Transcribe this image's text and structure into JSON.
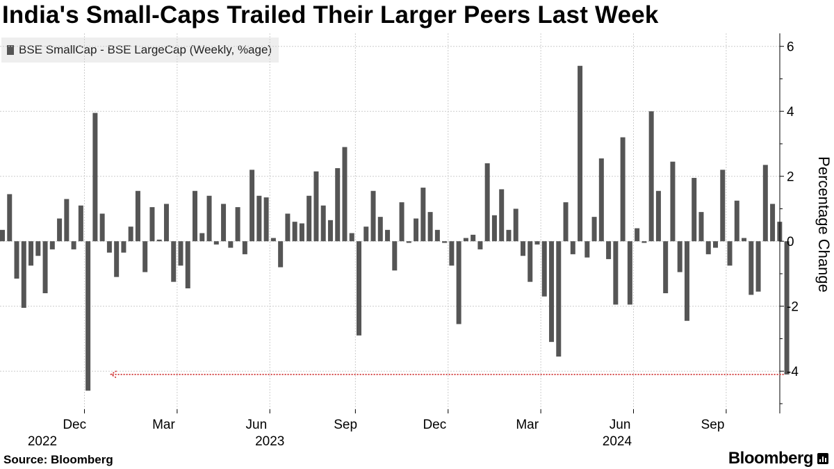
{
  "chart_data": {
    "type": "bar",
    "title": "India's Small-Caps Trailed Their Larger Peers Last Week",
    "legend": "BSE SmallCap - BSE LargeCap (Weekly, %age)",
    "ylabel": "Percentage Change",
    "ylim": [
      -5.3,
      6.4
    ],
    "yticks": [
      6,
      4,
      2,
      0,
      -2,
      -4
    ],
    "ytick_labels": [
      "6",
      "4",
      "2",
      "0",
      "-2",
      "-4"
    ],
    "x_tick_labels": [
      "Dec",
      "Mar",
      "Jun",
      "Sep",
      "Dec",
      "Mar",
      "Jun",
      "Sep"
    ],
    "year_labels": [
      "2022",
      "2023",
      "2024"
    ],
    "values": [
      0.35,
      1.45,
      -1.15,
      -2.05,
      -0.75,
      -0.45,
      -1.6,
      -0.25,
      0.7,
      1.3,
      -0.25,
      1.1,
      -4.6,
      3.95,
      0.85,
      -0.35,
      -1.1,
      -0.35,
      0.45,
      1.55,
      -0.95,
      1.05,
      0.05,
      1.15,
      -1.25,
      -0.75,
      -1.45,
      1.55,
      0.25,
      1.4,
      -0.1,
      1.15,
      -0.2,
      1.05,
      -0.4,
      2.2,
      1.4,
      1.35,
      0.1,
      -0.8,
      0.85,
      0.6,
      0.55,
      1.4,
      2.15,
      1.1,
      0.65,
      2.25,
      2.9,
      0.25,
      -2.9,
      0.45,
      1.55,
      0.75,
      0.35,
      -0.9,
      1.2,
      -0.05,
      0.7,
      1.65,
      0.9,
      0.35,
      -0.05,
      -0.75,
      -2.55,
      0.1,
      0.2,
      -0.25,
      2.4,
      0.8,
      1.6,
      0.35,
      1.0,
      -0.45,
      -1.25,
      -0.1,
      -1.7,
      -3.1,
      -3.55,
      1.2,
      -0.4,
      5.4,
      -0.5,
      0.75,
      2.55,
      -0.55,
      -1.95,
      3.2,
      -1.95,
      0.4,
      -0.05,
      4.0,
      1.55,
      -1.6,
      2.45,
      -0.95,
      -2.45,
      1.95,
      0.9,
      -0.4,
      -0.2,
      2.2,
      -0.75,
      1.25,
      0.1,
      -1.65,
      -1.55,
      2.35,
      1.15,
      0.6,
      -4.1
    ],
    "annotation": "dotted arrow from latest week (-4.1) back to Dec 2022 low"
  },
  "source": "Source: Bloomberg",
  "brand": "Bloomberg",
  "colors": {
    "bar": "#555555",
    "grid": "#cccccc",
    "arrow": "#cc2222",
    "legend_bg": "#eeeeee"
  }
}
